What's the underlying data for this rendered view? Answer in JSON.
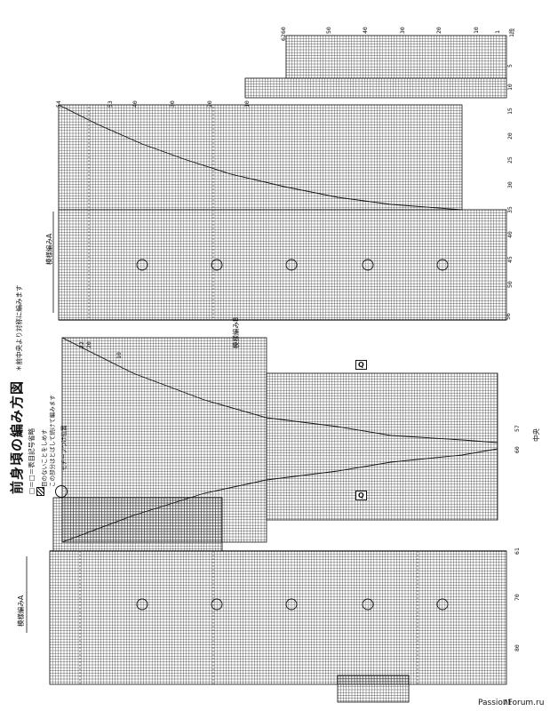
{
  "header": {
    "title": "前身頃の編み方図",
    "note_symmetric": "＊前中央より対称に編みます"
  },
  "legend": {
    "symbol_equals": "□＝□＝表目記号省略",
    "gap_note_line1": "目のないことをしめす",
    "gap_note_line2": "この部分はとばして続けて編みます",
    "motif_note": "モチーフつけ位置"
  },
  "labels": {
    "pattern_a_top": "模様編みA",
    "pattern_a_bottom": "模様編みA",
    "pattern_b": "模様編みB",
    "center": "中央",
    "q_mark": "Q"
  },
  "row_numbers": {
    "right_rows": [
      "1段",
      "5",
      "10",
      "15",
      "20",
      "25",
      "30",
      "35",
      "40",
      "45",
      "50",
      "55"
    ],
    "right_stitches": [
      "1",
      "10",
      "20",
      "30",
      "40",
      "50",
      "60",
      "62"
    ],
    "upper_stitches": [
      "53",
      "54",
      "40",
      "30",
      "20",
      "10"
    ],
    "upper_rows": [
      "56"
    ],
    "center_stitches": [
      "22",
      "20",
      "10"
    ],
    "center_rows": [
      "57",
      "60"
    ],
    "lower_rows": [
      "61",
      "70",
      "80"
    ]
  },
  "footer": {
    "page_number": "71",
    "watermark": "PassionForum.ru"
  }
}
